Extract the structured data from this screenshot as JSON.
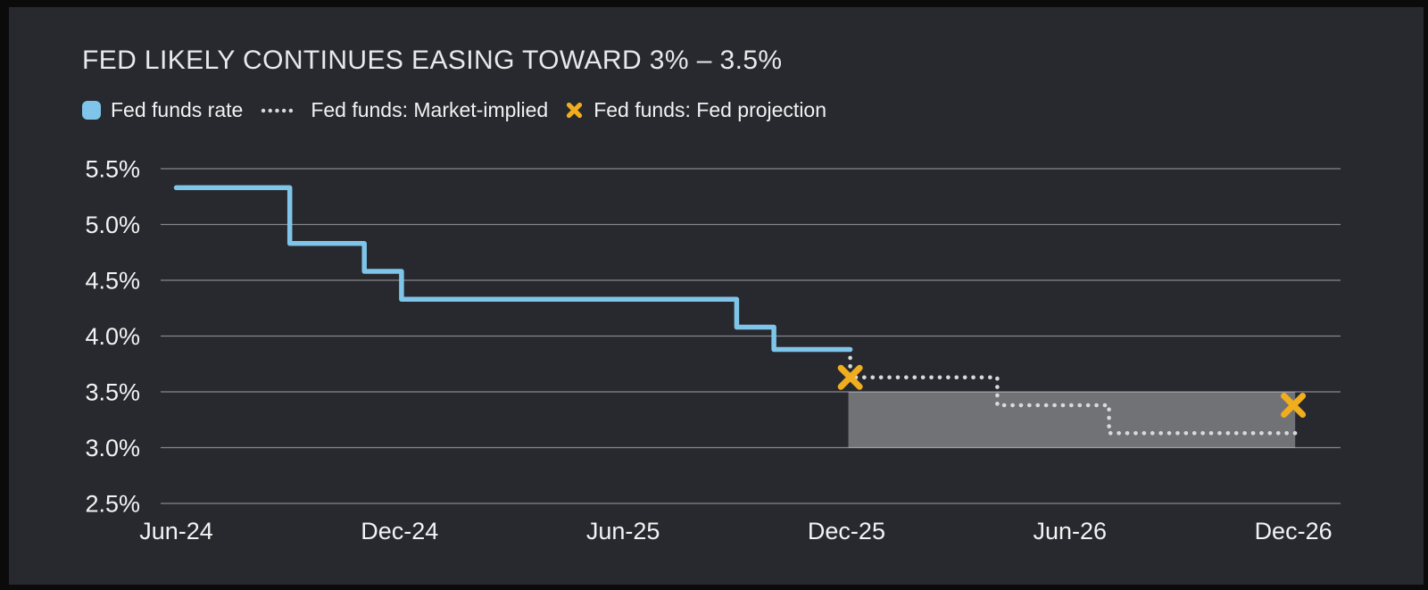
{
  "title": "FED LIKELY CONTINUES EASING TOWARD 3% – 3.5%",
  "legend": {
    "items": [
      {
        "label": "Fed funds rate",
        "marker": "rounded-square",
        "color": "#7ec5e9"
      },
      {
        "label": "Fed funds: Market-implied",
        "marker": "dotted-line",
        "color": "#d8d9da"
      },
      {
        "label": "Fed funds: Fed projection",
        "marker": "x-cross",
        "color": "#f0ae1e"
      }
    ]
  },
  "colors": {
    "background": "#0b0b0c",
    "panel": "#27292e",
    "gridline": "#85878b",
    "axis_text": "#f2f3f4",
    "title_text": "#e8e9eb",
    "legend_text": "#f1f2f3",
    "fed_funds_rate": "#7ec5e9",
    "market_implied": "#d8d9da",
    "fed_projection": "#f0ae1e",
    "band": "rgba(255,255,255,0.34)"
  },
  "chart_data": {
    "type": "line",
    "title": "FED LIKELY CONTINUES EASING TOWARD 3% – 3.5%",
    "grid": true,
    "legend_position": "top-left",
    "x_axis": {
      "unit": "months since Jun-2024",
      "ticks": [
        {
          "m": 0,
          "label": "Jun-24"
        },
        {
          "m": 6,
          "label": "Dec-24"
        },
        {
          "m": 12,
          "label": "Jun-25"
        },
        {
          "m": 18,
          "label": "Dec-25"
        },
        {
          "m": 24,
          "label": "Jun-26"
        },
        {
          "m": 30,
          "label": "Dec-26"
        }
      ]
    },
    "y_axis": {
      "unit": "%",
      "range": [
        2.5,
        5.5
      ],
      "ticks": [
        {
          "value": 5.5,
          "label": "5.5%"
        },
        {
          "value": 5.0,
          "label": "5.0%"
        },
        {
          "value": 4.5,
          "label": "4.5%"
        },
        {
          "value": 4.0,
          "label": "4.0%"
        },
        {
          "value": 3.5,
          "label": "3.5%"
        },
        {
          "value": 3.0,
          "label": "3.0%"
        },
        {
          "value": 2.5,
          "label": "2.5%"
        }
      ]
    },
    "series": [
      {
        "name": "Fed funds rate",
        "type": "step-line",
        "style": "solid",
        "rate_changes": [
          {
            "date": "Jun-24",
            "rate_pct": 5.33
          },
          {
            "date": "Sep-24",
            "rate_pct": 4.83
          },
          {
            "date": "Nov-24",
            "rate_pct": 4.58
          },
          {
            "date": "Dec-24",
            "rate_pct": 4.33
          },
          {
            "date": "Sep-25",
            "rate_pct": 4.08
          },
          {
            "date": "Oct-25",
            "rate_pct": 3.88
          }
        ],
        "points_m_pct": [
          [
            0,
            5.33
          ],
          [
            3.05,
            5.33
          ],
          [
            3.05,
            4.83
          ],
          [
            5.05,
            4.83
          ],
          [
            5.05,
            4.58
          ],
          [
            6.05,
            4.58
          ],
          [
            6.05,
            4.33
          ],
          [
            15.05,
            4.33
          ],
          [
            15.05,
            4.08
          ],
          [
            16.05,
            4.08
          ],
          [
            16.05,
            3.88
          ],
          [
            18.1,
            3.88
          ]
        ]
      },
      {
        "name": "Fed funds: Market-implied",
        "type": "step-line",
        "style": "dotted",
        "rate_changes": [
          {
            "date": "Dec-25",
            "rate_pct": 3.63
          },
          {
            "date": "Apr-26",
            "rate_pct": 3.38
          },
          {
            "date": "Jul-26",
            "rate_pct": 3.13
          }
        ],
        "points_m_pct": [
          [
            18.1,
            3.88
          ],
          [
            18.1,
            3.63
          ],
          [
            22.05,
            3.63
          ],
          [
            22.05,
            3.38
          ],
          [
            25.05,
            3.38
          ],
          [
            25.05,
            3.13
          ],
          [
            30.05,
            3.13
          ]
        ]
      },
      {
        "name": "Fed funds: Fed projection",
        "type": "scatter",
        "marker": "x",
        "rate_changes": [
          {
            "date": "Dec-25",
            "rate_pct": 3.63
          },
          {
            "date": "Dec-26",
            "rate_pct": 3.38
          }
        ],
        "points_m_pct": [
          [
            18.1,
            3.63
          ],
          [
            30.0,
            3.38
          ]
        ]
      }
    ],
    "shaded_band": {
      "from_m": 18.05,
      "to_m": 30.05,
      "low_pct": 3.0,
      "high_pct": 3.5
    }
  }
}
